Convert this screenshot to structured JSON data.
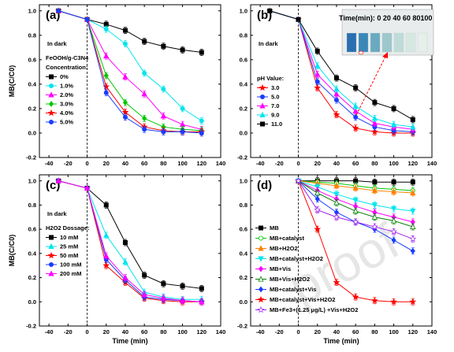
{
  "watermark": "proof",
  "chart_data": [
    {
      "panel": "(a)",
      "type": "line",
      "xlabel": "",
      "ylabel": "MB(C/C0)",
      "xlim": [
        -50,
        140
      ],
      "ylim": [
        -0.2,
        1.05
      ],
      "xticks": [
        -40,
        -20,
        0,
        20,
        40,
        60,
        80,
        100,
        120,
        140
      ],
      "yticks": [
        -0.2,
        0.0,
        0.2,
        0.4,
        0.6,
        0.8,
        1.0
      ],
      "annotation": "In dark",
      "legend_title": [
        "FeOOH/g-C3N4",
        "Concentration:"
      ],
      "series": [
        {
          "name": "0%",
          "color": "#000000",
          "marker": "square",
          "x": [
            -30,
            0,
            20,
            40,
            60,
            80,
            100,
            120
          ],
          "y": [
            1.0,
            0.93,
            0.89,
            0.84,
            0.75,
            0.71,
            0.68,
            0.66
          ]
        },
        {
          "name": "1.0%",
          "color": "#00e5ee",
          "marker": "circle",
          "x": [
            -30,
            0,
            20,
            40,
            60,
            80,
            100,
            120
          ],
          "y": [
            1.0,
            0.93,
            0.85,
            0.73,
            0.49,
            0.36,
            0.2,
            0.1
          ]
        },
        {
          "name": "2.0%",
          "color": "#ff00ff",
          "marker": "triangle",
          "x": [
            -30,
            0,
            20,
            40,
            60,
            80,
            100,
            120
          ],
          "y": [
            1.0,
            0.93,
            0.63,
            0.46,
            0.32,
            0.14,
            0.07,
            0.03
          ]
        },
        {
          "name": "3.0%",
          "color": "#00c800",
          "marker": "diamond",
          "x": [
            -30,
            0,
            20,
            40,
            60,
            80,
            100,
            120
          ],
          "y": [
            1.0,
            0.93,
            0.47,
            0.25,
            0.12,
            0.05,
            0.03,
            0.02
          ]
        },
        {
          "name": "4.0%",
          "color": "#ff0000",
          "marker": "star",
          "x": [
            -30,
            0,
            20,
            40,
            60,
            80,
            100,
            120
          ],
          "y": [
            1.0,
            0.93,
            0.38,
            0.17,
            0.05,
            0.02,
            0.01,
            0.01
          ]
        },
        {
          "name": "5.0%",
          "color": "#1a3cff",
          "marker": "circle",
          "x": [
            -30,
            0,
            20,
            40,
            60,
            80,
            100,
            120
          ],
          "y": [
            1.0,
            0.93,
            0.33,
            0.13,
            0.03,
            0.01,
            0.01,
            0.0
          ]
        }
      ]
    },
    {
      "panel": "(b)",
      "type": "line",
      "xlabel": "",
      "ylabel": "",
      "xlim": [
        -50,
        140
      ],
      "ylim": [
        -0.2,
        1.05
      ],
      "xticks": [
        -40,
        -20,
        0,
        20,
        40,
        60,
        80,
        100,
        120,
        140
      ],
      "yticks": [
        -0.2,
        0.0,
        0.2,
        0.4,
        0.6,
        0.8,
        1.0
      ],
      "annotation": "In dark",
      "legend_title": [
        "pH Value:"
      ],
      "inset_title": "Time(min): 0  20  40  60  80100",
      "series": [
        {
          "name": "3.0",
          "color": "#ff0000",
          "marker": "star",
          "x": [
            -30,
            0,
            20,
            40,
            60,
            80,
            100,
            120
          ],
          "y": [
            1.0,
            0.93,
            0.37,
            0.15,
            0.04,
            0.01,
            0.0,
            0.0
          ]
        },
        {
          "name": "5.0",
          "color": "#1a3cff",
          "marker": "circle",
          "x": [
            -30,
            0,
            20,
            40,
            60,
            80,
            100,
            120
          ],
          "y": [
            1.0,
            0.93,
            0.42,
            0.27,
            0.13,
            0.05,
            0.02,
            0.01
          ]
        },
        {
          "name": "7.0",
          "color": "#ff00ff",
          "marker": "triangle",
          "x": [
            -30,
            0,
            20,
            40,
            60,
            80,
            100,
            120
          ],
          "y": [
            1.0,
            0.93,
            0.48,
            0.32,
            0.18,
            0.08,
            0.05,
            0.03
          ]
        },
        {
          "name": "9.0",
          "color": "#00e5ee",
          "marker": "triangle",
          "x": [
            -30,
            0,
            20,
            40,
            60,
            80,
            100,
            120
          ],
          "y": [
            1.0,
            0.93,
            0.55,
            0.36,
            0.22,
            0.12,
            0.07,
            0.05
          ]
        },
        {
          "name": "11.0",
          "color": "#000000",
          "marker": "square",
          "x": [
            -30,
            0,
            20,
            40,
            60,
            80,
            100,
            120
          ],
          "y": [
            1.0,
            0.93,
            0.67,
            0.45,
            0.37,
            0.25,
            0.2,
            0.11
          ]
        }
      ]
    },
    {
      "panel": "(c)",
      "type": "line",
      "xlabel": "Time (min)",
      "ylabel": "MB(C/C0)",
      "xlim": [
        -50,
        140
      ],
      "ylim": [
        -0.2,
        1.05
      ],
      "xticks": [
        -40,
        -20,
        0,
        20,
        40,
        60,
        80,
        100,
        120,
        140
      ],
      "yticks": [
        -0.2,
        0.0,
        0.2,
        0.4,
        0.6,
        0.8,
        1.0
      ],
      "annotation": "In dark",
      "legend_title": [
        "H2O2 Dossage:"
      ],
      "series": [
        {
          "name": "10 mM",
          "color": "#000000",
          "marker": "square",
          "x": [
            -30,
            0,
            20,
            40,
            60,
            80,
            100,
            120
          ],
          "y": [
            1.0,
            0.94,
            0.8,
            0.49,
            0.22,
            0.15,
            0.13,
            0.11
          ]
        },
        {
          "name": "25 mM",
          "color": "#00e5ee",
          "marker": "triangle",
          "x": [
            -30,
            0,
            20,
            40,
            60,
            80,
            100,
            120
          ],
          "y": [
            1.0,
            0.94,
            0.55,
            0.33,
            0.08,
            0.04,
            0.02,
            0.02
          ]
        },
        {
          "name": "50 mM",
          "color": "#ff0000",
          "marker": "star",
          "x": [
            -30,
            0,
            20,
            40,
            60,
            80,
            100,
            120
          ],
          "y": [
            1.0,
            0.94,
            0.3,
            0.16,
            0.03,
            0.01,
            0.0,
            0.0
          ]
        },
        {
          "name": "100 mM",
          "color": "#1a3cff",
          "marker": "circle",
          "x": [
            -30,
            0,
            20,
            40,
            60,
            80,
            100,
            120
          ],
          "y": [
            1.0,
            0.94,
            0.35,
            0.18,
            0.04,
            0.02,
            0.01,
            0.0
          ]
        },
        {
          "name": "200 mM",
          "color": "#ff00ff",
          "marker": "triangle",
          "x": [
            -30,
            0,
            20,
            40,
            60,
            80,
            100,
            120
          ],
          "y": [
            1.0,
            0.94,
            0.38,
            0.2,
            0.06,
            0.03,
            0.01,
            0.0
          ]
        }
      ]
    },
    {
      "panel": "(d)",
      "type": "line",
      "xlabel": "Time (min)",
      "ylabel": "",
      "xlim": [
        -50,
        140
      ],
      "ylim": [
        -0.2,
        1.05
      ],
      "xticks": [
        -40,
        -20,
        0,
        20,
        40,
        60,
        80,
        100,
        120,
        140
      ],
      "yticks": [
        -0.2,
        0.0,
        0.2,
        0.4,
        0.6,
        0.8,
        1.0
      ],
      "annotation": "",
      "legend_title": [],
      "series": [
        {
          "name": "MB",
          "color": "#000000",
          "marker": "square",
          "x": [
            0,
            20,
            40,
            60,
            80,
            100,
            120
          ],
          "y": [
            1.0,
            1.0,
            1.0,
            1.0,
            0.99,
            0.99,
            0.99
          ]
        },
        {
          "name": "MB+catalyst",
          "color": "#00c800",
          "marker": "circle-open",
          "x": [
            0,
            20,
            40,
            60,
            80,
            100,
            120
          ],
          "y": [
            1.0,
            0.99,
            0.98,
            0.96,
            0.94,
            0.93,
            0.92
          ]
        },
        {
          "name": "MB+H2O2",
          "color": "#ff8000",
          "marker": "triangle",
          "x": [
            0,
            20,
            40,
            60,
            80,
            100,
            120
          ],
          "y": [
            1.0,
            0.98,
            0.96,
            0.94,
            0.92,
            0.91,
            0.9
          ]
        },
        {
          "name": "MB+catalyst+H2O2",
          "color": "#00e5ee",
          "marker": "triangle-down",
          "x": [
            0,
            20,
            40,
            60,
            80,
            100,
            120
          ],
          "y": [
            1.0,
            0.95,
            0.89,
            0.84,
            0.8,
            0.77,
            0.75
          ]
        },
        {
          "name": "MB+Vis",
          "color": "#ff00ff",
          "marker": "diamond",
          "x": [
            0,
            20,
            40,
            60,
            80,
            100,
            120
          ],
          "y": [
            1.0,
            0.92,
            0.85,
            0.79,
            0.74,
            0.7,
            0.66
          ]
        },
        {
          "name": "MB+Vis+H2O2",
          "color": "#008000",
          "marker": "triangle-open",
          "x": [
            0,
            20,
            40,
            60,
            80,
            100,
            120
          ],
          "y": [
            1.0,
            0.9,
            0.82,
            0.75,
            0.7,
            0.67,
            0.62
          ]
        },
        {
          "name": "MB+catalyst+Vis",
          "color": "#1a3cff",
          "marker": "diamond",
          "x": [
            0,
            20,
            40,
            60,
            80,
            100,
            120
          ],
          "y": [
            1.0,
            0.85,
            0.74,
            0.66,
            0.6,
            0.51,
            0.42
          ]
        },
        {
          "name": "MB+catalyst+Vis+H2O2",
          "color": "#ff0000",
          "marker": "star",
          "x": [
            0,
            20,
            40,
            60,
            80,
            100,
            120
          ],
          "y": [
            1.0,
            0.6,
            0.16,
            0.04,
            0.01,
            0.0,
            0.0
          ]
        },
        {
          "name": "MB+Fe3+(1.25 μg/L) +Vis+H2O2",
          "color": "#a020f0",
          "marker": "star-open",
          "x": [
            0,
            20,
            40,
            60,
            80,
            100,
            120
          ],
          "y": [
            1.0,
            0.76,
            0.7,
            0.66,
            0.62,
            0.58,
            0.52
          ]
        }
      ]
    }
  ]
}
